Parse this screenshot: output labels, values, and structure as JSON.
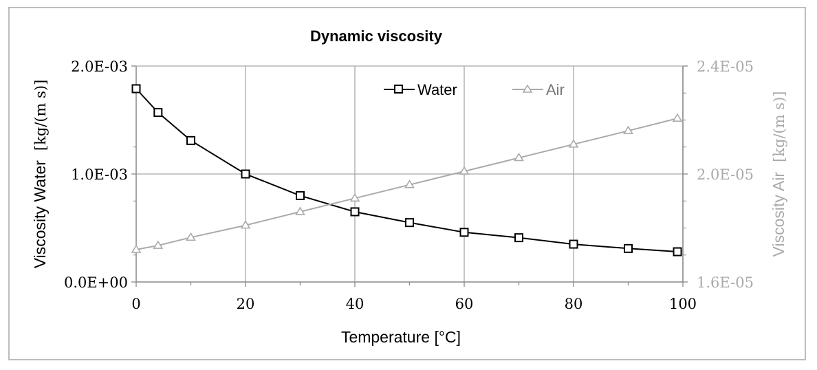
{
  "chart_data": {
    "type": "line",
    "title": "Dynamic viscosity",
    "xlabel": "Temperature   [°C]",
    "ylabel_left_text": "Viscosity Water",
    "ylabel_left_unit": "[kg/(m s)]",
    "ylabel_right_text": "Viscosity Air",
    "ylabel_right_unit": "[kg/(m s)]",
    "xlim": [
      0,
      100
    ],
    "ylim_left": [
      0,
      0.002
    ],
    "ylim_right": [
      1.6e-05,
      2.4e-05
    ],
    "x_ticks": [
      "0",
      "20",
      "40",
      "60",
      "80",
      "100"
    ],
    "x_tick_values": [
      0,
      20,
      40,
      60,
      80,
      100
    ],
    "y_left_ticks": [
      "0.0E+00",
      "1.0E-03",
      "2.0E-03"
    ],
    "y_left_tick_values": [
      0,
      0.001,
      0.002
    ],
    "y_right_ticks": [
      "1.6E-05",
      "2.0E-05",
      "2.4E-05"
    ],
    "y_right_tick_values": [
      1.6e-05,
      2e-05,
      2.4e-05
    ],
    "grid": true,
    "legend_position": "top-right",
    "colors": {
      "water": "#000000",
      "air": "#aaaaaa",
      "grid": "#a8a8a8"
    },
    "series": [
      {
        "name": "Water",
        "axis": "left",
        "marker": "square",
        "x": [
          0,
          4,
          10,
          20,
          30,
          40,
          50,
          60,
          70,
          80,
          90,
          99
        ],
        "y": [
          0.00179,
          0.00157,
          0.00131,
          0.001,
          0.0008,
          0.00065,
          0.00055,
          0.00046,
          0.00041,
          0.00035,
          0.00031,
          0.00028
        ]
      },
      {
        "name": "Air",
        "axis": "right",
        "marker": "triangle",
        "x": [
          0,
          4,
          10,
          20,
          30,
          40,
          50,
          60,
          70,
          80,
          90,
          99
        ],
        "y": [
          1.72e-05,
          1.735e-05,
          1.765e-05,
          1.81e-05,
          1.86e-05,
          1.91e-05,
          1.96e-05,
          2.01e-05,
          2.06e-05,
          2.11e-05,
          2.16e-05,
          2.206e-05
        ]
      }
    ]
  }
}
